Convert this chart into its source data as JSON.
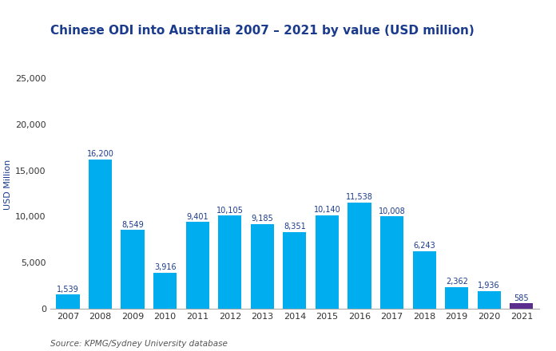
{
  "title": "Chinese ODI into Australia 2007 – 2021 by value (USD million)",
  "ylabel": "USD Million",
  "source": "Source: KPMG/Sydney University database",
  "years": [
    "2007",
    "2008",
    "2009",
    "2010",
    "2011",
    "2012",
    "2013",
    "2014",
    "2015",
    "2016",
    "2017",
    "2018",
    "2019",
    "2020",
    "2021"
  ],
  "values": [
    1539,
    16200,
    8549,
    3916,
    9401,
    10105,
    9185,
    8351,
    10140,
    11538,
    10008,
    6243,
    2362,
    1936,
    585
  ],
  "bar_colors": [
    "#00AEEF",
    "#00AEEF",
    "#00AEEF",
    "#00AEEF",
    "#00AEEF",
    "#00AEEF",
    "#00AEEF",
    "#00AEEF",
    "#00AEEF",
    "#00AEEF",
    "#00AEEF",
    "#00AEEF",
    "#00AEEF",
    "#00AEEF",
    "#5B2D8E"
  ],
  "ylim": [
    0,
    27000
  ],
  "yticks": [
    0,
    5000,
    10000,
    15000,
    20000,
    25000
  ],
  "title_color": "#1a3a8c",
  "bar_label_color": "#1a3a8c",
  "ylabel_color": "#1a3a8c",
  "tick_color": "#333333",
  "title_fontsize": 11,
  "ylabel_fontsize": 8,
  "source_fontsize": 7.5,
  "bar_label_fontsize": 7,
  "xtick_fontsize": 8,
  "ytick_fontsize": 8,
  "background_color": "#ffffff"
}
